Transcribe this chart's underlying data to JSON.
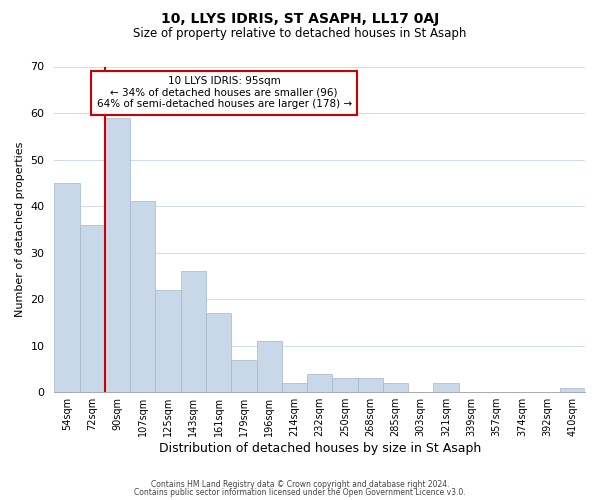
{
  "title": "10, LLYS IDRIS, ST ASAPH, LL17 0AJ",
  "subtitle": "Size of property relative to detached houses in St Asaph",
  "xlabel": "Distribution of detached houses by size in St Asaph",
  "ylabel": "Number of detached properties",
  "bar_color": "#c8d8e8",
  "bar_edge_color": "#a0b8cc",
  "grid_color": "#d0dce8",
  "categories": [
    "54sqm",
    "72sqm",
    "90sqm",
    "107sqm",
    "125sqm",
    "143sqm",
    "161sqm",
    "179sqm",
    "196sqm",
    "214sqm",
    "232sqm",
    "250sqm",
    "268sqm",
    "285sqm",
    "303sqm",
    "321sqm",
    "339sqm",
    "357sqm",
    "374sqm",
    "392sqm",
    "410sqm"
  ],
  "values": [
    45,
    36,
    59,
    41,
    22,
    26,
    17,
    7,
    11,
    2,
    4,
    3,
    3,
    2,
    0,
    2,
    0,
    0,
    0,
    0,
    1
  ],
  "redline_x": 2.0,
  "annotation_line1": "10 LLYS IDRIS: 95sqm",
  "annotation_line2": "← 34% of detached houses are smaller (96)",
  "annotation_line3": "64% of semi-detached houses are larger (178) →",
  "annotation_box_color": "#ffffff",
  "annotation_box_edge": "#cc0000",
  "redline_color": "#cc0000",
  "ylim": [
    0,
    70
  ],
  "yticks": [
    0,
    10,
    20,
    30,
    40,
    50,
    60,
    70
  ],
  "footer1": "Contains HM Land Registry data © Crown copyright and database right 2024.",
  "footer2": "Contains public sector information licensed under the Open Government Licence v3.0."
}
